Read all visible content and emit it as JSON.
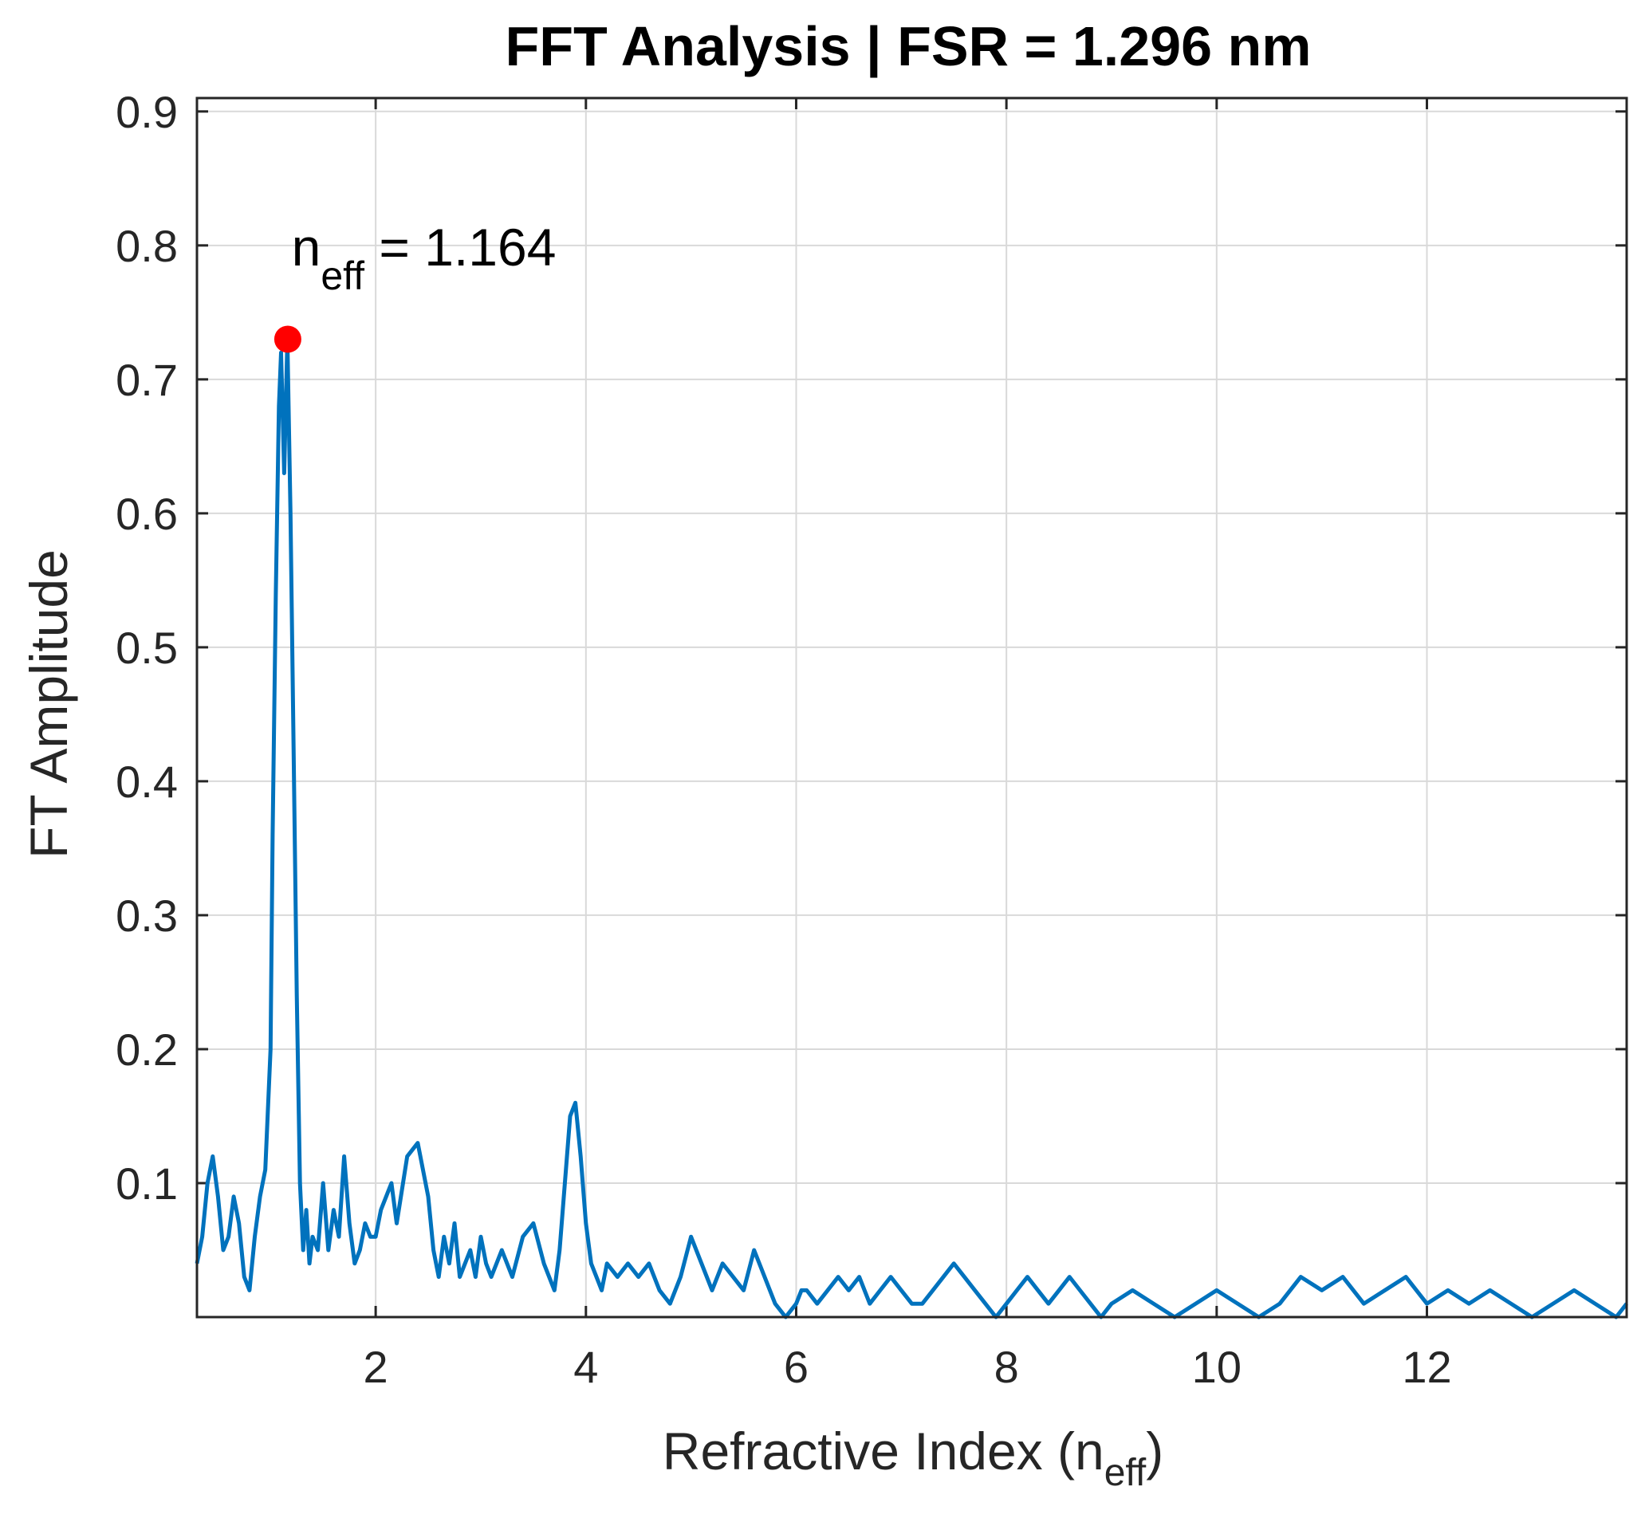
{
  "chart_data": {
    "type": "line",
    "title": "FFT Analysis | FSR = 1.296 nm",
    "xlabel_main": "Refractive Index (n",
    "xlabel_sub": "eff",
    "xlabel_end": ")",
    "ylabel": "FT Amplitude",
    "xlim": [
      0.3,
      13.9
    ],
    "ylim": [
      0.0,
      0.91
    ],
    "xticks": [
      2,
      4,
      6,
      8,
      10,
      12
    ],
    "xtick_labels": [
      "2",
      "4",
      "6",
      "8",
      "10",
      "12"
    ],
    "yticks": [
      0.1,
      0.2,
      0.3,
      0.4,
      0.5,
      0.6,
      0.7,
      0.8,
      0.9
    ],
    "ytick_labels": [
      "0.1",
      "0.2",
      "0.3",
      "0.4",
      "0.5",
      "0.6",
      "0.7",
      "0.8",
      "0.9"
    ],
    "grid": true,
    "line_color": "#0072BD",
    "marker_color": "#FF0000",
    "peak": {
      "x": 1.164,
      "y": 0.73
    },
    "annotation": {
      "prefix": "n",
      "sub": "eff",
      "suffix": " = 1.164",
      "x": 1.2,
      "y": 0.785
    },
    "series": [
      {
        "name": "FT Amplitude",
        "x": [
          0.3,
          0.35,
          0.4,
          0.45,
          0.5,
          0.55,
          0.6,
          0.65,
          0.7,
          0.75,
          0.8,
          0.85,
          0.9,
          0.95,
          1.0,
          1.02,
          1.05,
          1.08,
          1.1,
          1.13,
          1.16,
          1.19,
          1.22,
          1.25,
          1.28,
          1.31,
          1.34,
          1.37,
          1.4,
          1.45,
          1.5,
          1.55,
          1.6,
          1.65,
          1.7,
          1.75,
          1.8,
          1.85,
          1.9,
          1.95,
          2.0,
          2.05,
          2.1,
          2.15,
          2.2,
          2.3,
          2.4,
          2.5,
          2.55,
          2.6,
          2.65,
          2.7,
          2.75,
          2.8,
          2.85,
          2.9,
          2.95,
          3.0,
          3.05,
          3.1,
          3.15,
          3.2,
          3.3,
          3.4,
          3.5,
          3.6,
          3.7,
          3.75,
          3.8,
          3.85,
          3.9,
          3.95,
          4.0,
          4.05,
          4.1,
          4.15,
          4.2,
          4.3,
          4.4,
          4.5,
          4.6,
          4.7,
          4.8,
          4.9,
          5.0,
          5.1,
          5.2,
          5.3,
          5.4,
          5.5,
          5.6,
          5.7,
          5.8,
          5.9,
          6.0,
          6.05,
          6.1,
          6.2,
          6.3,
          6.4,
          6.5,
          6.6,
          6.7,
          6.8,
          6.9,
          7.0,
          7.1,
          7.2,
          7.3,
          7.4,
          7.5,
          7.6,
          7.7,
          7.8,
          7.9,
          8.0,
          8.1,
          8.2,
          8.3,
          8.4,
          8.5,
          8.6,
          8.7,
          8.8,
          8.9,
          9.0,
          9.2,
          9.4,
          9.6,
          9.8,
          10.0,
          10.2,
          10.4,
          10.6,
          10.8,
          11.0,
          11.2,
          11.4,
          11.6,
          11.8,
          12.0,
          12.2,
          12.4,
          12.6,
          12.8,
          13.0,
          13.2,
          13.4,
          13.6,
          13.8,
          13.9
        ],
        "y": [
          0.04,
          0.06,
          0.1,
          0.12,
          0.09,
          0.05,
          0.06,
          0.09,
          0.07,
          0.03,
          0.02,
          0.06,
          0.09,
          0.11,
          0.2,
          0.36,
          0.54,
          0.68,
          0.72,
          0.63,
          0.73,
          0.6,
          0.42,
          0.24,
          0.1,
          0.05,
          0.08,
          0.04,
          0.06,
          0.05,
          0.1,
          0.05,
          0.08,
          0.06,
          0.12,
          0.07,
          0.04,
          0.05,
          0.07,
          0.06,
          0.06,
          0.08,
          0.09,
          0.1,
          0.07,
          0.12,
          0.13,
          0.09,
          0.05,
          0.03,
          0.06,
          0.04,
          0.07,
          0.03,
          0.04,
          0.05,
          0.03,
          0.06,
          0.04,
          0.03,
          0.04,
          0.05,
          0.03,
          0.06,
          0.07,
          0.04,
          0.02,
          0.05,
          0.1,
          0.15,
          0.16,
          0.12,
          0.07,
          0.04,
          0.03,
          0.02,
          0.04,
          0.03,
          0.04,
          0.03,
          0.04,
          0.02,
          0.01,
          0.03,
          0.06,
          0.04,
          0.02,
          0.04,
          0.03,
          0.02,
          0.05,
          0.03,
          0.01,
          0.0,
          0.01,
          0.02,
          0.02,
          0.01,
          0.02,
          0.03,
          0.02,
          0.03,
          0.01,
          0.02,
          0.03,
          0.02,
          0.01,
          0.01,
          0.02,
          0.03,
          0.04,
          0.03,
          0.02,
          0.01,
          0.0,
          0.01,
          0.02,
          0.03,
          0.02,
          0.01,
          0.02,
          0.03,
          0.02,
          0.01,
          0.0,
          0.01,
          0.02,
          0.01,
          0.0,
          0.01,
          0.02,
          0.01,
          0.0,
          0.01,
          0.03,
          0.02,
          0.03,
          0.01,
          0.02,
          0.03,
          0.01,
          0.02,
          0.01,
          0.02,
          0.01,
          0.0,
          0.01,
          0.02,
          0.01,
          0.0,
          0.01
        ]
      }
    ]
  }
}
